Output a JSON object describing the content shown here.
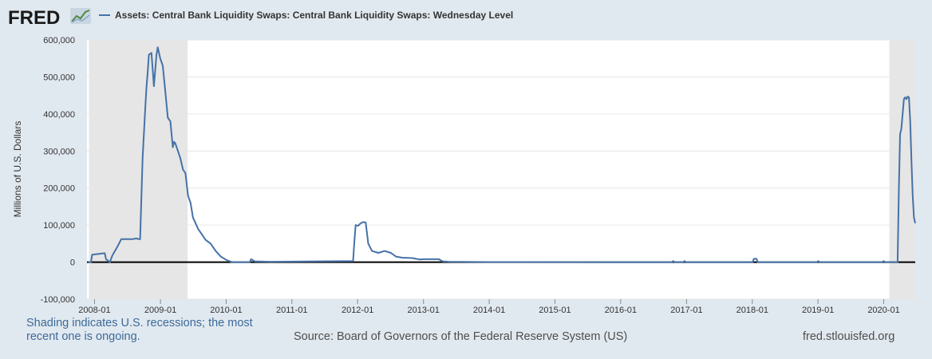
{
  "header": {
    "logo_text": "FRED",
    "logo_icon": "fred-chart-icon"
  },
  "footer": {
    "recession_note": "Shading indicates U.S. recessions; the most recent one is ongoing.",
    "source": "Source: Board of Governors of the Federal Reserve System (US)",
    "site": "fred.stlouisfed.org"
  },
  "colors": {
    "series": "#4572a7",
    "recession_shade": "#e6e6e6",
    "plot_bg": "#ffffff",
    "zero_line": "#000000",
    "page_bg": "#e1e9f0"
  },
  "chart_data": {
    "type": "line",
    "title": "",
    "xlabel": "",
    "ylabel": "Millions of U.S. Dollars",
    "ylim": [
      -100000,
      600000
    ],
    "xlim": [
      "2007-11-20",
      "2020-06-24"
    ],
    "y_ticks": [
      -100000,
      0,
      100000,
      200000,
      300000,
      400000,
      500000,
      600000
    ],
    "y_tick_labels": [
      "-100,000",
      "0",
      "100,000",
      "200,000",
      "300,000",
      "400,000",
      "500,000",
      "600,000"
    ],
    "x_ticks": [
      "2008-01-01",
      "2009-01-01",
      "2010-01-01",
      "2011-01-01",
      "2012-01-01",
      "2013-01-01",
      "2014-01-01",
      "2015-01-01",
      "2016-01-01",
      "2017-01-01",
      "2018-01-01",
      "2019-01-01",
      "2020-01-01"
    ],
    "x_tick_labels": [
      "2008-01",
      "2009-01",
      "2010-01",
      "2011-01",
      "2012-01",
      "2013-01",
      "2014-01",
      "2015-01",
      "2016-01",
      "2017-01",
      "2018-01",
      "2019-01",
      "2020-01"
    ],
    "grid": true,
    "legend_position": "top-left",
    "recessions": [
      {
        "start": "2007-12-01",
        "end": "2009-06-01"
      },
      {
        "start": "2020-02-01",
        "end": "2020-06-24"
      }
    ],
    "series": [
      {
        "name": "Assets: Central Bank Liquidity Swaps: Central Bank Liquidity Swaps: Wednesday Level",
        "points": [
          [
            "2007-11-28",
            0
          ],
          [
            "2007-12-12",
            0
          ],
          [
            "2007-12-19",
            20000
          ],
          [
            "2008-02-27",
            24000
          ],
          [
            "2008-03-05",
            8000
          ],
          [
            "2008-03-26",
            0
          ],
          [
            "2008-04-09",
            18000
          ],
          [
            "2008-04-30",
            36000
          ],
          [
            "2008-05-14",
            48000
          ],
          [
            "2008-05-28",
            62000
          ],
          [
            "2008-06-25",
            62000
          ],
          [
            "2008-07-30",
            62000
          ],
          [
            "2008-08-20",
            64000
          ],
          [
            "2008-09-03",
            62000
          ],
          [
            "2008-09-10",
            62000
          ],
          [
            "2008-09-24",
            280000
          ],
          [
            "2008-10-08",
            410000
          ],
          [
            "2008-10-15",
            470000
          ],
          [
            "2008-10-22",
            510000
          ],
          [
            "2008-10-29",
            560000
          ],
          [
            "2008-11-12",
            565000
          ],
          [
            "2008-11-26",
            475000
          ],
          [
            "2008-12-10",
            560000
          ],
          [
            "2008-12-17",
            580000
          ],
          [
            "2008-12-31",
            550000
          ],
          [
            "2009-01-14",
            530000
          ],
          [
            "2009-01-28",
            460000
          ],
          [
            "2009-02-11",
            390000
          ],
          [
            "2009-02-25",
            380000
          ],
          [
            "2009-03-11",
            310000
          ],
          [
            "2009-03-18",
            325000
          ],
          [
            "2009-03-25",
            320000
          ],
          [
            "2009-04-08",
            300000
          ],
          [
            "2009-04-22",
            280000
          ],
          [
            "2009-05-06",
            250000
          ],
          [
            "2009-05-20",
            240000
          ],
          [
            "2009-06-03",
            180000
          ],
          [
            "2009-06-17",
            160000
          ],
          [
            "2009-07-01",
            120000
          ],
          [
            "2009-07-15",
            105000
          ],
          [
            "2009-07-29",
            90000
          ],
          [
            "2009-08-19",
            75000
          ],
          [
            "2009-09-09",
            60000
          ],
          [
            "2009-10-07",
            50000
          ],
          [
            "2009-11-04",
            30000
          ],
          [
            "2009-12-02",
            15000
          ],
          [
            "2010-01-06",
            5000
          ],
          [
            "2010-02-03",
            0
          ],
          [
            "2010-05-12",
            0
          ],
          [
            "2010-05-19",
            8000
          ],
          [
            "2010-06-09",
            2000
          ],
          [
            "2010-09-01",
            1000
          ],
          [
            "2011-12-07",
            3000
          ],
          [
            "2011-12-14",
            55000
          ],
          [
            "2011-12-21",
            100000
          ],
          [
            "2012-01-04",
            98000
          ],
          [
            "2012-01-18",
            105000
          ],
          [
            "2012-02-01",
            108000
          ],
          [
            "2012-02-15",
            107000
          ],
          [
            "2012-02-29",
            50000
          ],
          [
            "2012-03-21",
            30000
          ],
          [
            "2012-04-25",
            25000
          ],
          [
            "2012-05-30",
            30000
          ],
          [
            "2012-07-04",
            25000
          ],
          [
            "2012-08-01",
            15000
          ],
          [
            "2012-09-05",
            12000
          ],
          [
            "2012-10-31",
            11000
          ],
          [
            "2012-12-12",
            7000
          ],
          [
            "2013-01-02",
            8000
          ],
          [
            "2013-03-27",
            8000
          ],
          [
            "2013-04-17",
            2000
          ],
          [
            "2013-05-22",
            1000
          ],
          [
            "2014-01-01",
            100
          ],
          [
            "2016-10-12",
            0
          ],
          [
            "2016-10-19",
            3000
          ],
          [
            "2016-10-26",
            0
          ],
          [
            "2016-12-14",
            0
          ],
          [
            "2016-12-21",
            3000
          ],
          [
            "2016-12-28",
            0
          ],
          [
            "2018-01-03",
            0
          ],
          [
            "2018-01-10",
            9000
          ],
          [
            "2018-01-24",
            9000
          ],
          [
            "2018-01-31",
            0
          ],
          [
            "2018-12-26",
            0
          ],
          [
            "2019-01-02",
            3000
          ],
          [
            "2019-01-09",
            0
          ],
          [
            "2019-12-25",
            0
          ],
          [
            "2020-01-01",
            3000
          ],
          [
            "2020-01-08",
            0
          ],
          [
            "2020-03-11",
            0
          ],
          [
            "2020-03-18",
            0
          ],
          [
            "2020-03-25",
            200000
          ],
          [
            "2020-04-01",
            345000
          ],
          [
            "2020-04-08",
            360000
          ],
          [
            "2020-04-15",
            400000
          ],
          [
            "2020-04-22",
            440000
          ],
          [
            "2020-04-29",
            445000
          ],
          [
            "2020-05-06",
            440000
          ],
          [
            "2020-05-13",
            447000
          ],
          [
            "2020-05-20",
            445000
          ],
          [
            "2020-05-27",
            380000
          ],
          [
            "2020-06-03",
            270000
          ],
          [
            "2020-06-10",
            180000
          ],
          [
            "2020-06-17",
            120000
          ],
          [
            "2020-06-24",
            105000
          ]
        ]
      }
    ]
  }
}
